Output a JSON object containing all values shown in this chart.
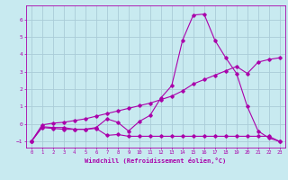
{
  "background_color": "#c8eaf0",
  "grid_color": "#aaccd8",
  "line_color": "#aa00aa",
  "xlabel": "Windchill (Refroidissement éolien,°C)",
  "xlim": [
    -0.5,
    23.5
  ],
  "ylim": [
    -1.35,
    6.8
  ],
  "yticks": [
    -1,
    0,
    1,
    2,
    3,
    4,
    5,
    6
  ],
  "xticks": [
    0,
    1,
    2,
    3,
    4,
    5,
    6,
    7,
    8,
    9,
    10,
    11,
    12,
    13,
    14,
    15,
    16,
    17,
    18,
    19,
    20,
    21,
    22,
    23
  ],
  "line1_x": [
    0,
    1,
    2,
    3,
    4,
    5,
    6,
    7,
    8,
    9,
    10,
    11,
    12,
    13,
    14,
    15,
    16,
    17,
    18,
    19,
    20,
    21,
    22,
    23
  ],
  "line1_y": [
    -1.0,
    -0.2,
    -0.25,
    -0.3,
    -0.3,
    -0.3,
    -0.25,
    -0.65,
    -0.6,
    -0.7,
    -0.7,
    -0.7,
    -0.7,
    -0.7,
    -0.7,
    -0.7,
    -0.7,
    -0.7,
    -0.7,
    -0.7,
    -0.7,
    -0.7,
    -0.7,
    -1.0
  ],
  "line2_x": [
    0,
    1,
    2,
    3,
    4,
    5,
    6,
    7,
    8,
    9,
    10,
    11,
    12,
    13,
    14,
    15,
    16,
    17,
    18,
    19,
    20,
    21,
    22,
    23
  ],
  "line2_y": [
    -1.0,
    -0.15,
    -0.2,
    -0.2,
    -0.3,
    -0.3,
    -0.2,
    0.3,
    0.1,
    -0.4,
    0.15,
    0.5,
    1.5,
    2.2,
    4.8,
    6.25,
    6.3,
    4.8,
    3.8,
    2.9,
    1.0,
    -0.4,
    -0.8,
    -1.0
  ],
  "line3_x": [
    0,
    1,
    2,
    3,
    4,
    5,
    6,
    7,
    8,
    9,
    10,
    11,
    12,
    13,
    14,
    15,
    16,
    17,
    18,
    19,
    20,
    21,
    22,
    23
  ],
  "line3_y": [
    -1.0,
    -0.05,
    0.05,
    0.1,
    0.2,
    0.3,
    0.45,
    0.6,
    0.75,
    0.9,
    1.05,
    1.2,
    1.4,
    1.6,
    1.9,
    2.3,
    2.55,
    2.8,
    3.05,
    3.3,
    2.9,
    3.55,
    3.7,
    3.8
  ]
}
